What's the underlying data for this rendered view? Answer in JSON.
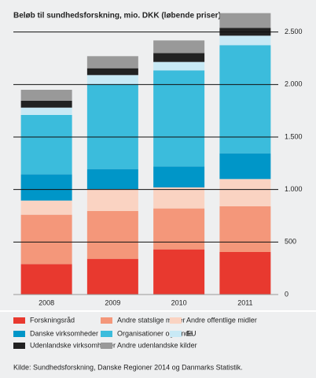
{
  "chart_data": {
    "type": "stacked_bar",
    "title": "Beløb til sundhedsforskning, mio. DKK (løbende priser)",
    "categories": [
      "2008",
      "2009",
      "2010",
      "2011"
    ],
    "series": [
      {
        "name": "Forskningsråd",
        "color": "#e8392f",
        "values": [
          290,
          340,
          430,
          405
        ]
      },
      {
        "name": "Andre statslige midler",
        "color": "#f4977a",
        "values": [
          470,
          455,
          390,
          435
        ]
      },
      {
        "name": "Andre offentlige midler",
        "color": "#fad3c2",
        "values": [
          135,
          210,
          200,
          260
        ]
      },
      {
        "name": "Danske virksomheder",
        "color": "#0096c8",
        "values": [
          250,
          190,
          200,
          245
        ]
      },
      {
        "name": "Organisationer og fonde",
        "color": "#3bbcdc",
        "values": [
          565,
          810,
          915,
          1030
        ]
      },
      {
        "name": "EU",
        "color": "#c8e9f5",
        "values": [
          70,
          85,
          80,
          90
        ]
      },
      {
        "name": "Udenlandske virksomheder",
        "color": "#222222",
        "values": [
          65,
          65,
          85,
          75
        ]
      },
      {
        "name": "Andre udenlandske kilder",
        "color": "#999999",
        "values": [
          105,
          115,
          120,
          140
        ]
      }
    ],
    "ylim": [
      0,
      2700
    ],
    "yticks": [
      0,
      500,
      {
        "value": 1000,
        "label": "1.000"
      },
      {
        "value": 1500,
        "label": "1.500"
      },
      {
        "value": 2000,
        "label": "2.000"
      },
      {
        "value": 2500,
        "label": "2.500"
      }
    ],
    "grid": true,
    "source": "Kilde: Sundhedsforskning, Danske Regioner 2014 og Danmarks Statistik."
  }
}
